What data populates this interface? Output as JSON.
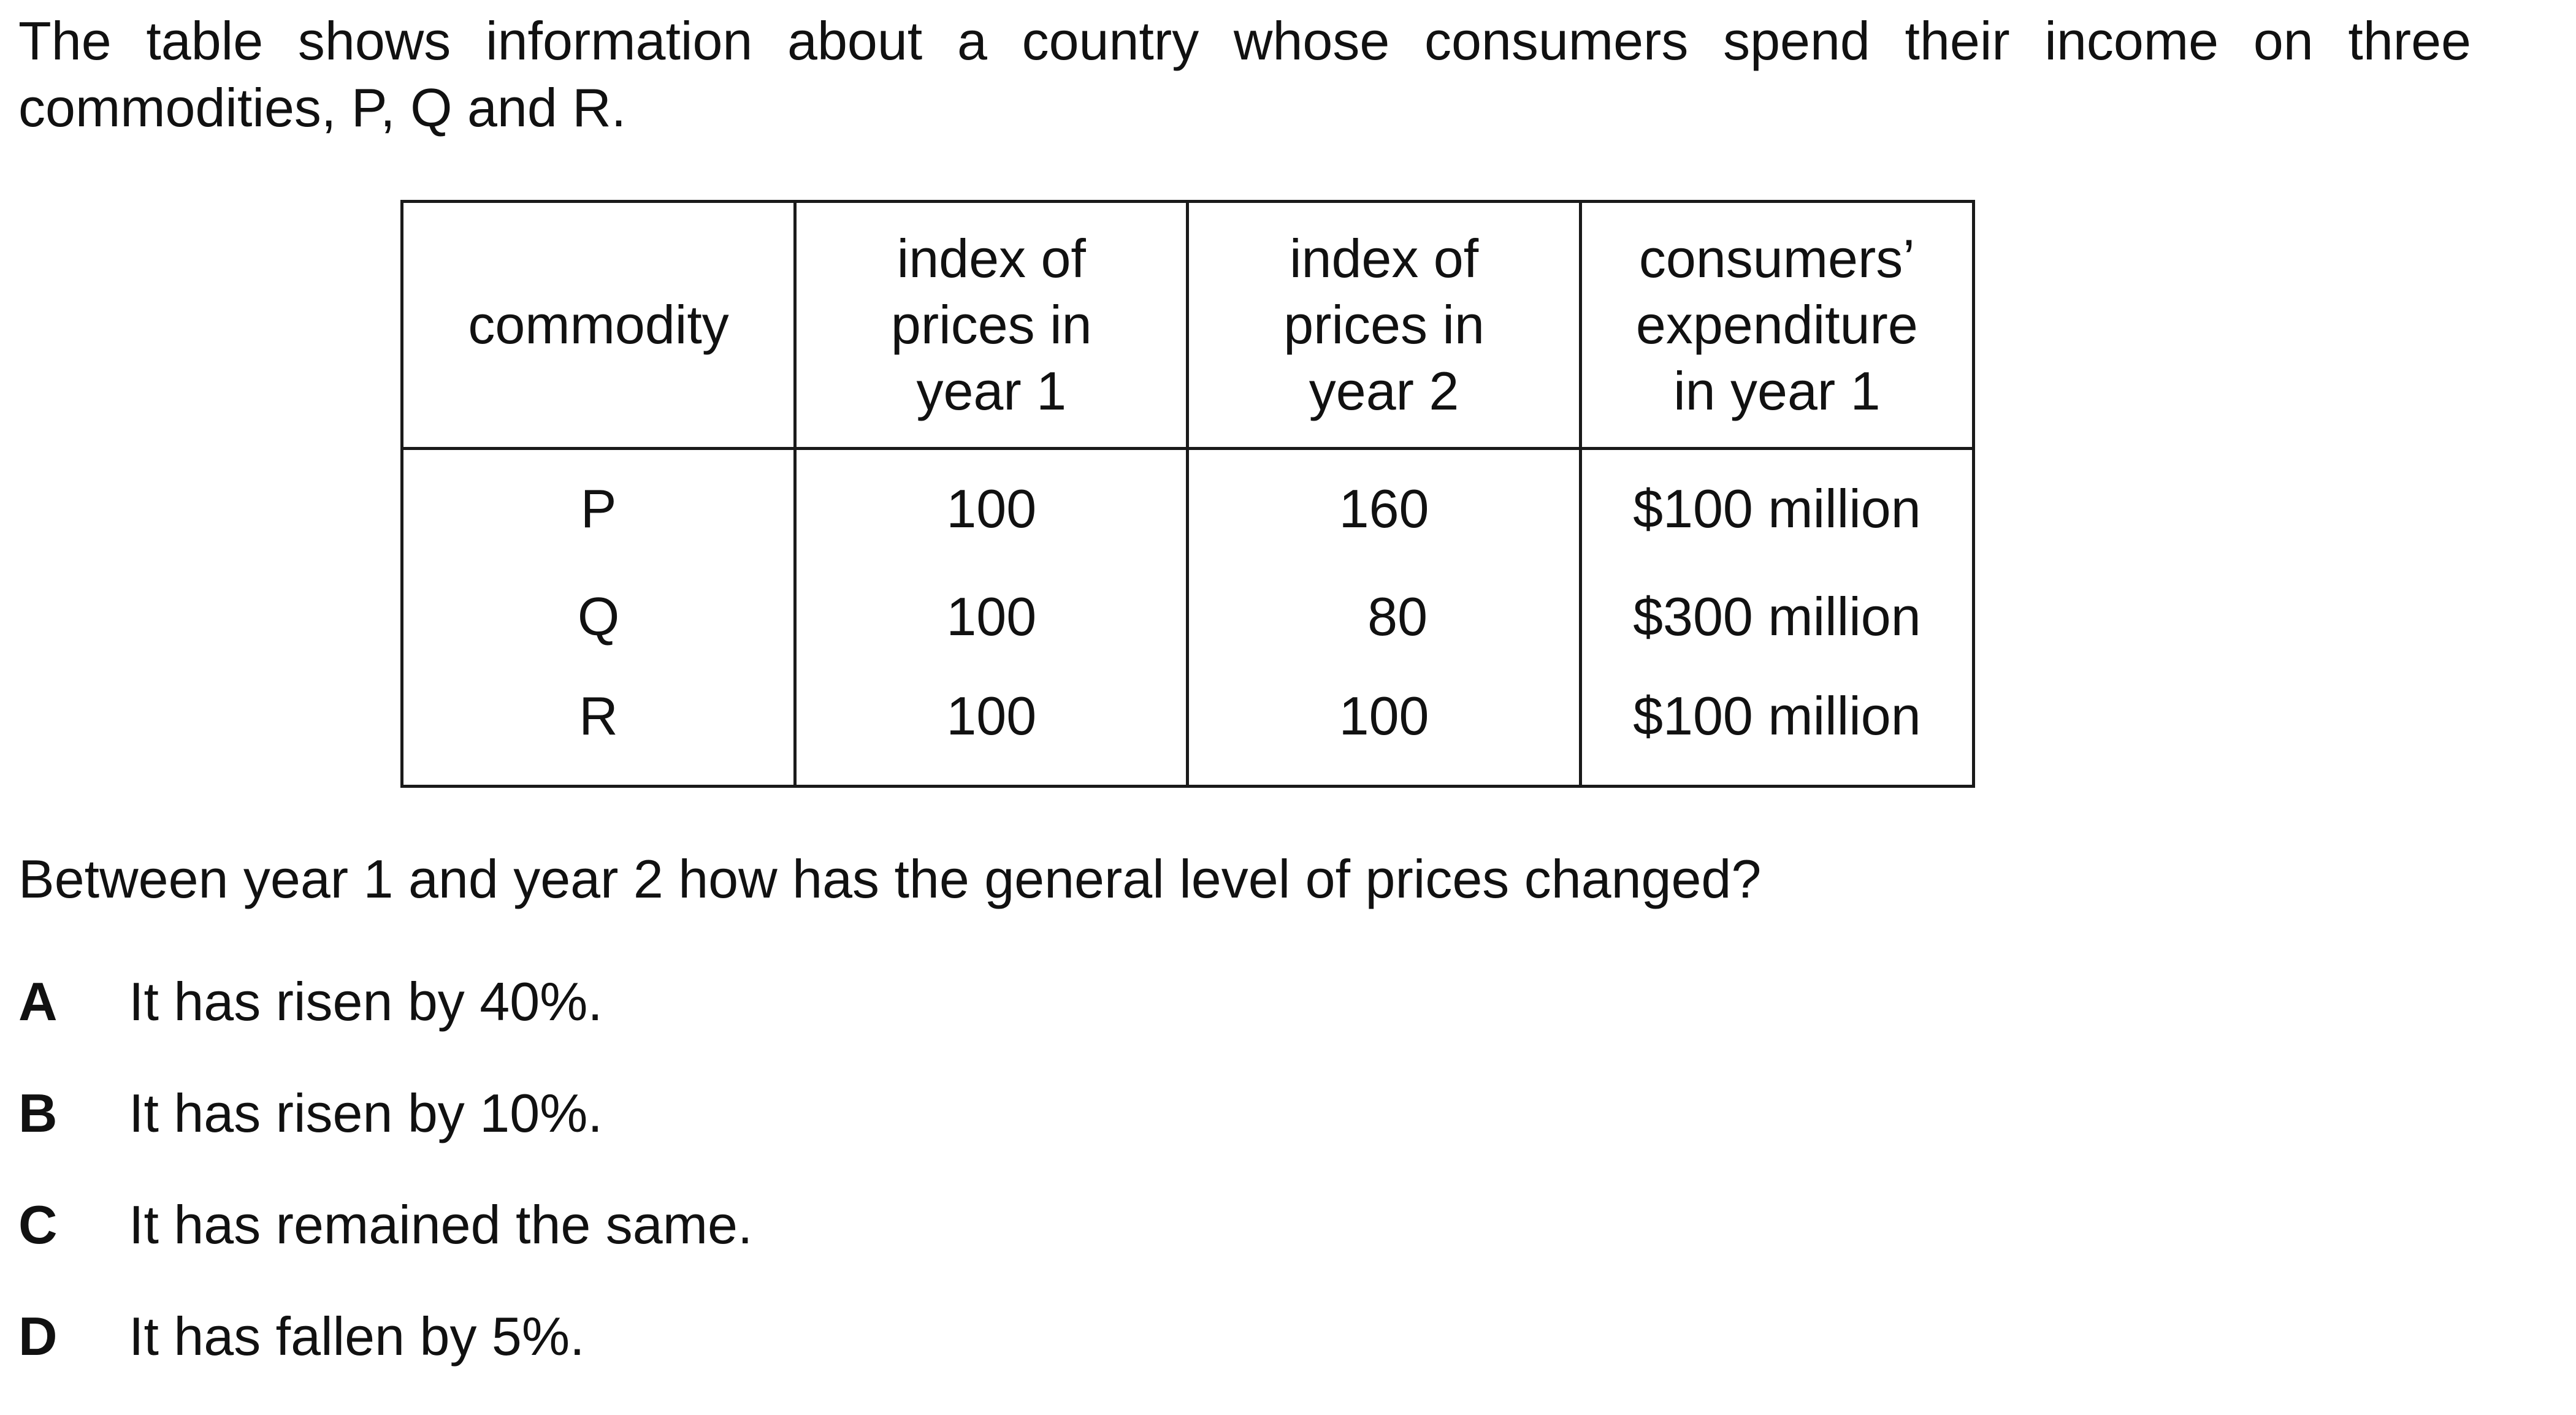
{
  "intro": {
    "line1": "The table shows information about a country whose consumers spend their income on three",
    "line2": "commodities, P, Q and R."
  },
  "table": {
    "headers": [
      [
        "commodity"
      ],
      [
        "index of",
        "prices in",
        "year 1"
      ],
      [
        "index of",
        "prices in",
        "year 2"
      ],
      [
        "consumers’",
        "expenditure",
        "in year 1"
      ]
    ],
    "rows": [
      [
        "P",
        "100",
        "160",
        "$100 million"
      ],
      [
        "Q",
        "100",
        "80",
        "$300 million"
      ],
      [
        "R",
        "100",
        "100",
        "$100 million"
      ]
    ]
  },
  "question": "Between year 1 and year 2 how has the general level of prices changed?",
  "options": [
    {
      "letter": "A",
      "text": "It has risen by 40%."
    },
    {
      "letter": "B",
      "text": "It has risen by 10%."
    },
    {
      "letter": "C",
      "text": "It has remained the same."
    },
    {
      "letter": "D",
      "text": "It has fallen by 5%."
    }
  ]
}
